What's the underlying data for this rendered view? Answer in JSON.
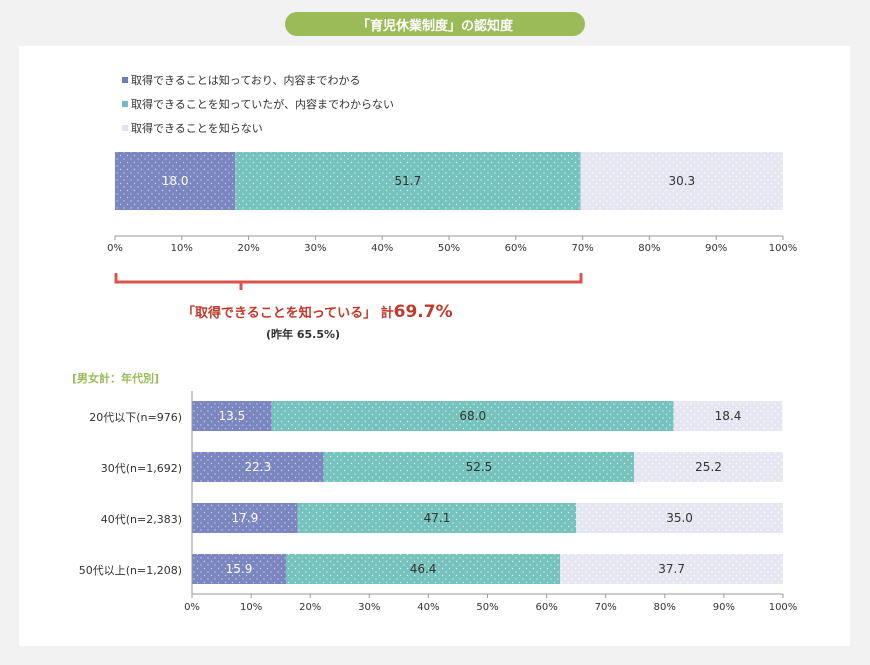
{
  "title": "「育児休業制度」の認知度",
  "legend": [
    {
      "label": "取得できることは知っており、内容までわかる",
      "color": "#7b86c0"
    },
    {
      "label": "取得できることを知っていたが、内容までわからない",
      "color": "#76c3be"
    },
    {
      "label": "取得できることを知らない",
      "color": "#e4e4f2"
    }
  ],
  "summary": {
    "label": "「取得できることを知っている」 計",
    "value": "69.7%",
    "prev": "(昨年 65.5%)"
  },
  "section_label": "[男女計：年代別]",
  "chart_data": [
    {
      "type": "bar",
      "orientation": "horizontal",
      "stacked": true,
      "categories": [
        ""
      ],
      "series": [
        {
          "name": "取得できることは知っており、内容までわかる",
          "values": [
            18.0
          ]
        },
        {
          "name": "取得できることを知っていたが、内容までわからない",
          "values": [
            51.7
          ]
        },
        {
          "name": "取得できることを知らない",
          "values": [
            30.3
          ]
        }
      ],
      "xlim": [
        0,
        100
      ],
      "xticks": [
        "0%",
        "10%",
        "20%",
        "30%",
        "40%",
        "50%",
        "60%",
        "70%",
        "80%",
        "90%",
        "100%"
      ]
    },
    {
      "type": "bar",
      "orientation": "horizontal",
      "stacked": true,
      "categories": [
        "20代以下(n=976)",
        "30代(n=1,692)",
        "40代(n=2,383)",
        "50代以上(n=1,208)"
      ],
      "series": [
        {
          "name": "取得できることは知っており、内容までわかる",
          "values": [
            13.5,
            22.3,
            17.9,
            15.9
          ]
        },
        {
          "name": "取得できることを知っていたが、内容までわからない",
          "values": [
            68.0,
            52.5,
            47.1,
            46.4
          ]
        },
        {
          "name": "取得できることを知らない",
          "values": [
            18.4,
            25.2,
            35.0,
            37.7
          ]
        }
      ],
      "xlim": [
        0,
        100
      ],
      "xticks": [
        "0%",
        "10%",
        "20%",
        "30%",
        "40%",
        "50%",
        "60%",
        "70%",
        "80%",
        "90%",
        "100%"
      ]
    }
  ]
}
